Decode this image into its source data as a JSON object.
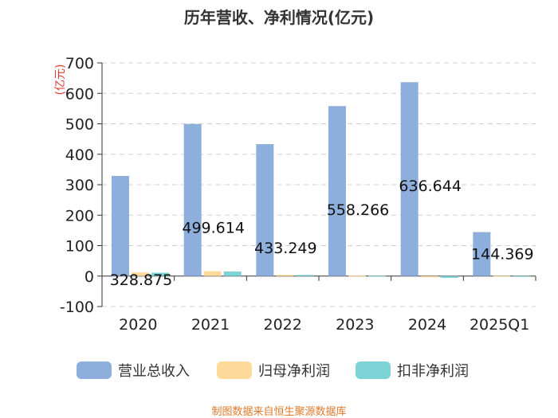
{
  "chart_data": {
    "type": "bar",
    "title": "历年营收、净利情况(亿元)",
    "ylabel": "(亿元)",
    "xlabel": "",
    "ylim": [
      -100,
      700
    ],
    "yticks": [
      -100,
      0,
      100,
      200,
      300,
      400,
      500,
      600,
      700
    ],
    "categories": [
      "2020",
      "2021",
      "2022",
      "2023",
      "2024",
      "2025Q1"
    ],
    "series": [
      {
        "name": "营业总收入",
        "color": "#8eaedc",
        "values": [
          328.875,
          499.614,
          433.249,
          558.266,
          636.644,
          144.369
        ]
      },
      {
        "name": "归母净利润",
        "color": "#fdd99a",
        "values": [
          12.0,
          16.0,
          4.0,
          1.0,
          -4.0,
          0.5
        ]
      },
      {
        "name": "扣非净利润",
        "color": "#7dd4d6",
        "values": [
          11.0,
          15.0,
          3.5,
          0.5,
          -6.0,
          0.3
        ]
      }
    ],
    "data_labels": [
      "328.875",
      "499.614",
      "433.249",
      "558.266",
      "636.644",
      "144.369"
    ],
    "grid": true,
    "legend": "bottom"
  },
  "source": "制图数据来自恒生聚源数据库"
}
